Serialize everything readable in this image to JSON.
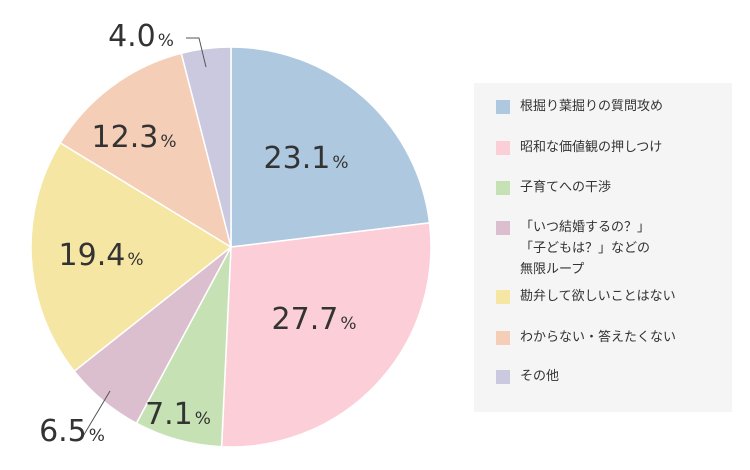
{
  "chart_data": {
    "type": "pie",
    "slices": [
      {
        "label": "根掘り葉掘りの質問攻め",
        "value": 23.1,
        "value_text": "23.1",
        "color": "#aec8e0"
      },
      {
        "label": "昭和な価値観の押しつけ",
        "value": 27.7,
        "value_text": "27.7",
        "color": "#fccfd8"
      },
      {
        "label": "子育てへの干渉",
        "value": 7.1,
        "value_text": "7.1",
        "color": "#c6e2b4"
      },
      {
        "label": "「いつ結婚するの？」\n「子どもは？」などの\n無限ループ",
        "value": 6.5,
        "value_text": "6.5",
        "color": "#dbbfcf"
      },
      {
        "label": "勘弁して欲しいことはない",
        "value": 19.4,
        "value_text": "19.4",
        "color": "#f6e6a4"
      },
      {
        "label": "わからない・答えたくない",
        "value": 12.3,
        "value_text": "12.3",
        "color": "#f4ceb6"
      },
      {
        "label": "その他",
        "value": 4.0,
        "value_text": "4.0",
        "color": "#cac9df"
      }
    ],
    "unit": "%",
    "start": "top",
    "direction": "clockwise",
    "legend_position": "right"
  }
}
